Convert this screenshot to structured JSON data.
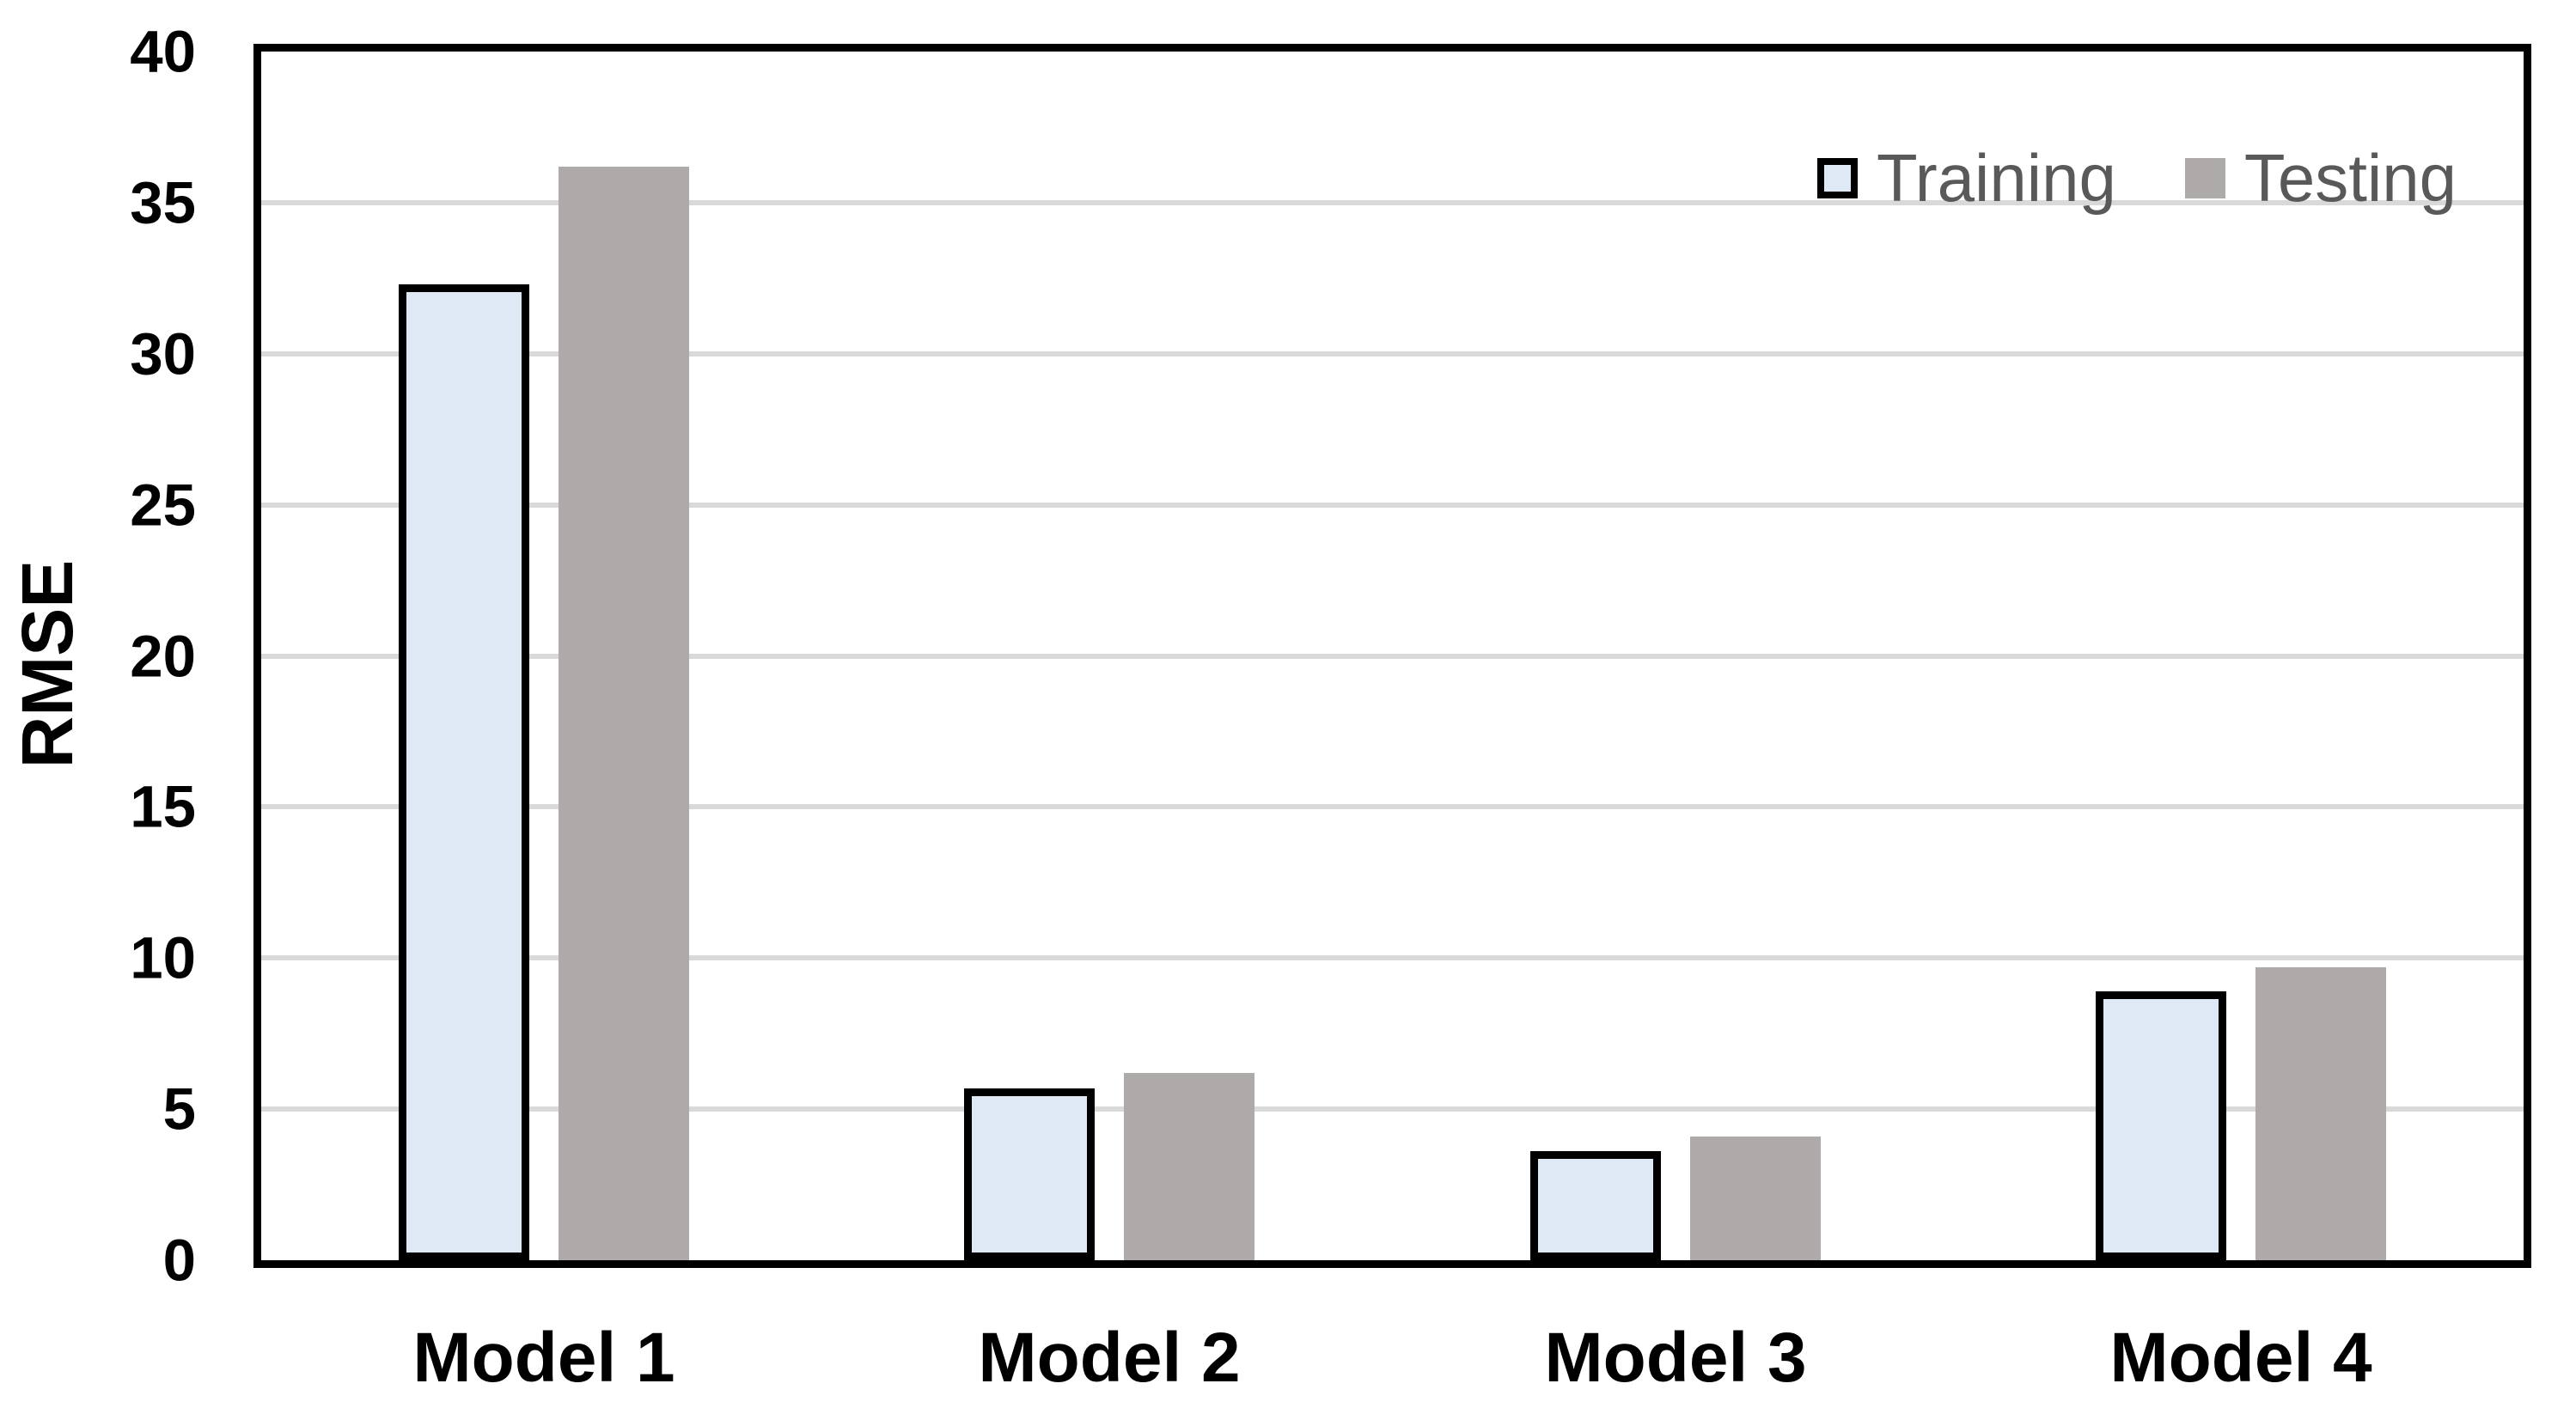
{
  "chart_data": {
    "type": "bar",
    "title": "",
    "categories": [
      "Model 1",
      "Model 2",
      "Model 3",
      "Model 4"
    ],
    "series": [
      {
        "name": "Training",
        "values": [
          32.3,
          5.7,
          3.6,
          8.9
        ],
        "fill": "#DEE9F5",
        "border_color": "#000000",
        "has_border": true
      },
      {
        "name": "Testing",
        "values": [
          36.2,
          6.2,
          4.1,
          9.7
        ],
        "fill": "#AEAAAA",
        "border_color": "none",
        "has_border": false
      }
    ],
    "xlabel": "",
    "ylabel": "RMSE",
    "ylim": [
      0,
      40
    ],
    "yticks": [
      0,
      5,
      10,
      15,
      20,
      25,
      30,
      35,
      40
    ],
    "grid": "horizontal",
    "gridline_color": "#D9D9D9",
    "frame_color": "#000000",
    "legend_position": "top-right-inside",
    "legend_text_color": "#595959",
    "background_color": "#FFFFFF"
  }
}
